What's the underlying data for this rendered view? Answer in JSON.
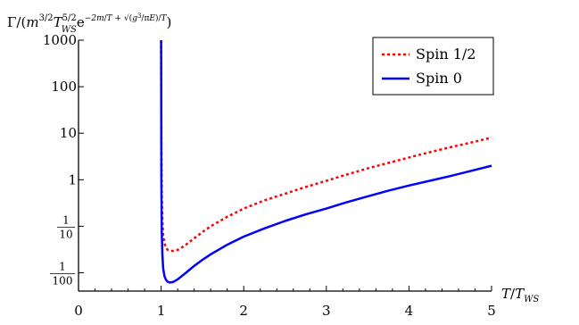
{
  "chart_data": {
    "type": "line",
    "title": "",
    "xlabel": "T/T_WS",
    "ylabel": "Γ/(m^{3/2} T_WS^{5/2} e^{-2m/T + √(g^3/πE)/T})",
    "xlim": [
      0,
      5
    ],
    "ylim_log10": [
      -2.45,
      3.0
    ],
    "yscale": "log",
    "grid": false,
    "legend_position": "top-right",
    "x_ticks": [
      {
        "value": 0,
        "label": "0"
      },
      {
        "value": 1,
        "label": "1"
      },
      {
        "value": 2,
        "label": "2"
      },
      {
        "value": 3,
        "label": "3"
      },
      {
        "value": 4,
        "label": "4"
      },
      {
        "value": 5,
        "label": "5"
      }
    ],
    "y_ticks": [
      {
        "value": 1000,
        "label": "1000"
      },
      {
        "value": 100,
        "label": "100"
      },
      {
        "value": 10,
        "label": "10"
      },
      {
        "value": 1,
        "label": "1"
      },
      {
        "value": 0.1,
        "numerator": "1",
        "denominator": "10"
      },
      {
        "value": 0.01,
        "numerator": "1",
        "denominator": "100"
      }
    ],
    "series": [
      {
        "name": "Spin 1/2",
        "color": "#ff0000",
        "style": "dotted",
        "x": [
          1.0,
          1.003,
          1.008,
          1.015,
          1.025,
          1.04,
          1.06,
          1.08,
          1.1,
          1.12,
          1.15,
          1.2,
          1.25,
          1.3,
          1.4,
          1.5,
          1.6,
          1.8,
          2.0,
          2.25,
          2.5,
          2.75,
          3.0,
          3.25,
          3.5,
          3.75,
          4.0,
          4.25,
          4.5,
          4.75,
          5.0
        ],
        "y": [
          1000,
          5.0,
          0.5,
          0.13,
          0.065,
          0.043,
          0.034,
          0.031,
          0.03,
          0.0295,
          0.0295,
          0.031,
          0.035,
          0.04,
          0.055,
          0.075,
          0.1,
          0.16,
          0.24,
          0.36,
          0.5,
          0.7,
          0.95,
          1.3,
          1.75,
          2.3,
          3.0,
          3.9,
          5.0,
          6.3,
          8.0
        ]
      },
      {
        "name": "Spin 0",
        "color": "#0000ff",
        "style": "solid",
        "x": [
          1.0,
          1.003,
          1.008,
          1.015,
          1.025,
          1.04,
          1.06,
          1.08,
          1.1,
          1.12,
          1.15,
          1.2,
          1.25,
          1.3,
          1.4,
          1.5,
          1.6,
          1.8,
          2.0,
          2.25,
          2.5,
          2.75,
          3.0,
          3.25,
          3.5,
          3.75,
          4.0,
          4.25,
          4.5,
          4.75,
          5.0
        ],
        "y": [
          1000,
          1.0,
          0.08,
          0.025,
          0.0125,
          0.0085,
          0.007,
          0.0064,
          0.0062,
          0.0062,
          0.0064,
          0.0072,
          0.0085,
          0.01,
          0.014,
          0.019,
          0.025,
          0.04,
          0.06,
          0.09,
          0.13,
          0.18,
          0.24,
          0.33,
          0.44,
          0.58,
          0.75,
          0.95,
          1.2,
          1.55,
          2.0
        ]
      }
    ]
  }
}
